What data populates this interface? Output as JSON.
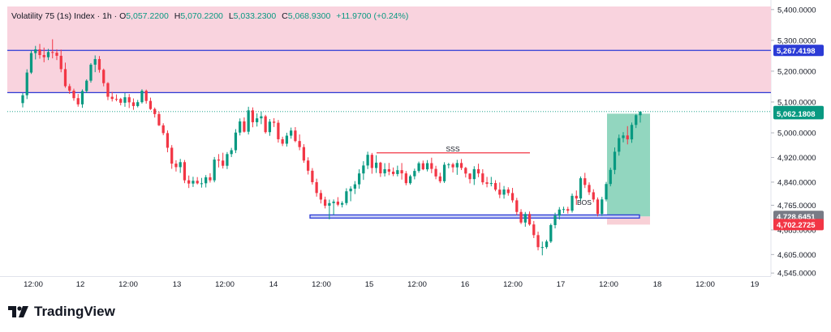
{
  "legend": {
    "symbol": "Volatility 75 (1s) Index · 1h ·",
    "o_label": "O",
    "o": "5,057.2200",
    "h_label": "H",
    "h": "5,070.2200",
    "l_label": "L",
    "l": "5,033.2300",
    "c_label": "C",
    "c": "5,068.9300",
    "change": "+11.9700 (+0.24%)"
  },
  "brand": {
    "name": "TradingView"
  },
  "colors": {
    "up": "#089981",
    "down": "#f23645",
    "zone": "#f9d3de",
    "level_line": "#2b3bd6",
    "target": "#7fcfb4",
    "stop": "#f7cbd1"
  },
  "chart_data": {
    "type": "candlestick",
    "timeframe": "1h",
    "x_ticks": [
      "12:00",
      "12",
      "12:00",
      "13",
      "12:00",
      "14",
      "12:00",
      "15",
      "12:00",
      "16",
      "12:00",
      "17",
      "12:00",
      "18",
      "12:00",
      "19"
    ],
    "y_ticks": [
      "5,400.0000",
      "5,300.0000",
      "5,200.0000",
      "5,100.0000",
      "5,000.0000",
      "4,920.0000",
      "4,840.0000",
      "4,765.0000",
      "4,685.0000",
      "4,605.0000",
      "4,545.0000"
    ],
    "y_range": [
      4535,
      5410
    ],
    "resistance_zone": [
      5130.5,
      5410
    ],
    "level_lines": [
      5267.4198,
      5130.5
    ],
    "support_zone": [
      4726,
      4731
    ],
    "price_labels": [
      {
        "text": "5,267.4198",
        "value": 5267.4198,
        "color": "#2b3bd6"
      },
      {
        "text": "5,068.9300",
        "value": 5068.93,
        "color": "#089981"
      },
      {
        "text": "5,062.1808",
        "value": 5062.1808,
        "color": "#089981"
      },
      {
        "text": "4,728.6451",
        "value": 4728.6451,
        "color": "#787b86"
      },
      {
        "text": "4,702.2725",
        "value": 4702.2725,
        "color": "#f23645"
      }
    ],
    "annotations": [
      {
        "text": "SSS",
        "value": 4935
      },
      {
        "text": "BOS",
        "value": 4745
      }
    ],
    "sss_line": 4935,
    "position": {
      "entry": 4728.6451,
      "target": 5062.1808,
      "stop": 4702.2725
    },
    "candles": [
      [
        5096.5,
        5129.0,
        5082.5,
        5122.0
      ],
      [
        5122.0,
        5206.2,
        5109.5,
        5195.6
      ],
      [
        5195.6,
        5267.5,
        5191.1,
        5258.8
      ],
      [
        5258.8,
        5282.1,
        5238.1,
        5270.8
      ],
      [
        5270.8,
        5288.5,
        5240.5,
        5252.4
      ],
      [
        5252.4,
        5276.7,
        5229.1,
        5245.4
      ],
      [
        5245.4,
        5272.4,
        5236.1,
        5262.1
      ],
      [
        5262.1,
        5303.6,
        5241.7,
        5259.9
      ],
      [
        5259.9,
        5271.0,
        5236.1,
        5250.0
      ],
      [
        5250.0,
        5270.1,
        5196.5,
        5206.7
      ],
      [
        5206.7,
        5227.8,
        5146.3,
        5151.4
      ],
      [
        5151.4,
        5158.9,
        5126.4,
        5136.8
      ],
      [
        5136.8,
        5143.2,
        5104.1,
        5112.5
      ],
      [
        5112.5,
        5126.1,
        5084.8,
        5092.4
      ],
      [
        5092.4,
        5141.0,
        5081.1,
        5135.5
      ],
      [
        5135.5,
        5173.7,
        5128.8,
        5169.2
      ],
      [
        5169.2,
        5226.2,
        5162.8,
        5221.2
      ],
      [
        5221.2,
        5251.2,
        5196.8,
        5239.3
      ],
      [
        5239.3,
        5249.2,
        5195.3,
        5204.4
      ],
      [
        5204.4,
        5208.4,
        5150.9,
        5161.2
      ],
      [
        5161.2,
        5164.4,
        5106.0,
        5117.0
      ],
      [
        5117.0,
        5132.8,
        5101.6,
        5110.0
      ],
      [
        5110.0,
        5124.6,
        5102.3,
        5109.9
      ],
      [
        5109.9,
        5113.6,
        5089.2,
        5097.6
      ],
      [
        5097.6,
        5128.9,
        5084.5,
        5115.4
      ],
      [
        5115.4,
        5125.8,
        5080.4,
        5098.9
      ],
      [
        5098.9,
        5111.6,
        5074.7,
        5087.0
      ],
      [
        5087.0,
        5106.7,
        5082.5,
        5099.4
      ],
      [
        5099.4,
        5141.4,
        5095.0,
        5136.5
      ],
      [
        5136.5,
        5140.4,
        5094.6,
        5103.5
      ],
      [
        5103.5,
        5114.2,
        5074.3,
        5077.2
      ],
      [
        5077.2,
        5082.1,
        5049.6,
        5060.8
      ],
      [
        5060.8,
        5069.4,
        5022.1,
        5024.3
      ],
      [
        5024.3,
        5031.1,
        4992.4,
        4999.1
      ],
      [
        4999.1,
        5007.8,
        4936.9,
        4951.6
      ],
      [
        4951.6,
        4960.2,
        4883.2,
        4900.1
      ],
      [
        4900.1,
        4911.0,
        4874.4,
        4888.7
      ],
      [
        4888.7,
        4915.3,
        4869.9,
        4904.8
      ],
      [
        4904.8,
        4911.9,
        4836.7,
        4846.0
      ],
      [
        4846.0,
        4861.5,
        4820.9,
        4835.4
      ],
      [
        4835.4,
        4857.4,
        4824.3,
        4844.4
      ],
      [
        4844.4,
        4856.4,
        4832.6,
        4836.1
      ],
      [
        4836.1,
        4853.7,
        4822.2,
        4836.3
      ],
      [
        4836.3,
        4862.9,
        4822.7,
        4855.7
      ],
      [
        4855.7,
        4868.8,
        4838.6,
        4845.9
      ],
      [
        4845.9,
        4921.6,
        4839.4,
        4913.2
      ],
      [
        4913.2,
        4931.0,
        4887.7,
        4910.0
      ],
      [
        4910.0,
        4935.4,
        4884.2,
        4893.1
      ],
      [
        4893.1,
        4937.6,
        4882.4,
        4931.0
      ],
      [
        4931.0,
        4951.2,
        4921.4,
        4943.6
      ],
      [
        4943.6,
        5012.0,
        4934.2,
        5000.8
      ],
      [
        5000.8,
        5046.7,
        4991.5,
        5037.1
      ],
      [
        5037.1,
        5050.0,
        5000.8,
        5003.6
      ],
      [
        5003.6,
        5084.6,
        4994.7,
        5072.9
      ],
      [
        5072.9,
        5082.5,
        5018.0,
        5034.4
      ],
      [
        5034.4,
        5063.1,
        5020.4,
        5047.0
      ],
      [
        5047.0,
        5069.2,
        5028.2,
        5053.6
      ],
      [
        5053.6,
        5058.4,
        4997.4,
        5002.2
      ],
      [
        5002.2,
        5044.8,
        4990.3,
        5036.2
      ],
      [
        5036.2,
        5047.6,
        5018.9,
        5032.7
      ],
      [
        5032.7,
        5041.6,
        4968.3,
        4979.2
      ],
      [
        4979.2,
        4987.4,
        4957.0,
        4964.7
      ],
      [
        4964.7,
        5000.3,
        4955.5,
        4990.8
      ],
      [
        4990.8,
        5017.0,
        4981.1,
        5007.4
      ],
      [
        5007.4,
        5018.6,
        4969.4,
        4973.4
      ],
      [
        4973.4,
        4994.7,
        4943.5,
        4953.7
      ],
      [
        4953.7,
        4963.2,
        4902.7,
        4910.1
      ],
      [
        4910.1,
        4920.5,
        4864.8,
        4877.0
      ],
      [
        4877.0,
        4885.6,
        4832.1,
        4839.9
      ],
      [
        4839.9,
        4851.2,
        4792.9,
        4804.7
      ],
      [
        4804.7,
        4814.5,
        4770.8,
        4783.5
      ],
      [
        4783.5,
        4792.9,
        4754.7,
        4763.5
      ],
      [
        4763.5,
        4783.4,
        4719.3,
        4771.9
      ],
      [
        4771.9,
        4783.8,
        4733.9,
        4776.8
      ],
      [
        4776.8,
        4791.3,
        4761.8,
        4766.9
      ],
      [
        4766.9,
        4778.2,
        4757.9,
        4772.1
      ],
      [
        4772.1,
        4820.1,
        4765.2,
        4810.3
      ],
      [
        4810.3,
        4826.6,
        4778.0,
        4818.9
      ],
      [
        4818.9,
        4843.5,
        4801.3,
        4832.9
      ],
      [
        4832.9,
        4881.7,
        4818.4,
        4868.2
      ],
      [
        4868.2,
        4907.9,
        4847.3,
        4894.0
      ],
      [
        4894.0,
        4938.8,
        4882.4,
        4928.7
      ],
      [
        4928.7,
        4934.8,
        4867.3,
        4885.9
      ],
      [
        4885.9,
        4927.5,
        4869.8,
        4903.2
      ],
      [
        4903.2,
        4905.9,
        4856.9,
        4868.5
      ],
      [
        4868.5,
        4901.6,
        4858.3,
        4882.0
      ],
      [
        4882.0,
        4902.4,
        4862.5,
        4874.0
      ],
      [
        4874.0,
        4887.6,
        4859.4,
        4866.3
      ],
      [
        4866.3,
        4893.5,
        4858.7,
        4878.8
      ],
      [
        4878.8,
        4902.0,
        4848.3,
        4868.4
      ],
      [
        4868.4,
        4876.1,
        4829.8,
        4836.7
      ],
      [
        4836.7,
        4864.1,
        4831.6,
        4859.1
      ],
      [
        4859.1,
        4883.9,
        4849.1,
        4876.3
      ],
      [
        4876.3,
        4906.6,
        4870.3,
        4901.2
      ],
      [
        4901.2,
        4910.0,
        4878.7,
        4881.6
      ],
      [
        4881.6,
        4911.4,
        4874.7,
        4901.6
      ],
      [
        4901.6,
        4919.3,
        4869.1,
        4882.9
      ],
      [
        4882.9,
        4893.0,
        4849.4,
        4858.5
      ],
      [
        4858.5,
        4870.6,
        4836.8,
        4842.8
      ],
      [
        4842.8,
        4904.6,
        4837.2,
        4896.4
      ],
      [
        4896.4,
        4902.5,
        4884.9,
        4897.9
      ],
      [
        4897.9,
        4903.0,
        4871.4,
        4888.0
      ],
      [
        4888.0,
        4912.4,
        4863.7,
        4902.0
      ],
      [
        4902.0,
        4915.1,
        4879.2,
        4886.1
      ],
      [
        4886.1,
        4889.5,
        4855.0,
        4867.8
      ],
      [
        4867.8,
        4869.2,
        4835.9,
        4849.8
      ],
      [
        4849.8,
        4891.7,
        4830.8,
        4882.1
      ],
      [
        4882.1,
        4899.8,
        4856.0,
        4868.3
      ],
      [
        4868.3,
        4882.0,
        4831.3,
        4839.4
      ],
      [
        4839.4,
        4857.0,
        4823.1,
        4834.3
      ],
      [
        4834.3,
        4857.0,
        4826.4,
        4837.0
      ],
      [
        4837.0,
        4846.4,
        4810.3,
        4815.6
      ],
      [
        4815.6,
        4838.9,
        4788.0,
        4799.3
      ],
      [
        4799.3,
        4827.5,
        4786.4,
        4816.1
      ],
      [
        4816.1,
        4823.3,
        4796.0,
        4804.5
      ],
      [
        4804.5,
        4821.3,
        4773.4,
        4781.0
      ],
      [
        4781.0,
        4789.0,
        4732.9,
        4743.2
      ],
      [
        4743.2,
        4752.3,
        4703.8,
        4708.9
      ],
      [
        4708.9,
        4743.3,
        4695.2,
        4736.6
      ],
      [
        4736.6,
        4744.8,
        4698.6,
        4702.7
      ],
      [
        4702.7,
        4713.9,
        4658.5,
        4668.1
      ],
      [
        4668.1,
        4679.3,
        4618.6,
        4629.0
      ],
      [
        4629.0,
        4647.1,
        4602.5,
        4629.2
      ],
      [
        4629.2,
        4652.9,
        4623.6,
        4647.3
      ],
      [
        4647.3,
        4705.5,
        4642.6,
        4700.6
      ],
      [
        4700.6,
        4740.8,
        4689.9,
        4731.3
      ],
      [
        4731.3,
        4759.1,
        4718.6,
        4751.0
      ],
      [
        4751.0,
        4760.4,
        4739.7,
        4752.5
      ],
      [
        4752.5,
        4760.0,
        4738.0,
        4747.2
      ],
      [
        4747.2,
        4803.1,
        4741.1,
        4795.6
      ],
      [
        4795.6,
        4812.9,
        4766.2,
        4787.0
      ],
      [
        4787.0,
        4858.4,
        4779.6,
        4852.6
      ],
      [
        4852.6,
        4870.2,
        4820.9,
        4830.9
      ],
      [
        4830.9,
        4839.3,
        4798.4,
        4807.1
      ],
      [
        4807.1,
        4817.0,
        4775.0,
        4783.7
      ],
      [
        4783.7,
        4790.4,
        4729.1,
        4737.0
      ],
      [
        4737.0,
        4792.1,
        4730.6,
        4783.9
      ],
      [
        4783.9,
        4840.7,
        4777.5,
        4834.0
      ],
      [
        4834.0,
        4886.9,
        4826.4,
        4879.8
      ],
      [
        4879.8,
        4952.4,
        4865.7,
        4938.7
      ],
      [
        4938.7,
        4994.5,
        4926.0,
        4983.0
      ],
      [
        4983.0,
        5002.3,
        4969.1,
        4991.5
      ],
      [
        4991.5,
        5021.7,
        4962.5,
        4978.8
      ],
      [
        4978.8,
        5033.4,
        4967.5,
        5025.7
      ],
      [
        5025.7,
        5061.4,
        5015.5,
        5057.2
      ],
      [
        5057.2,
        5070.2,
        5033.2,
        5068.9
      ]
    ]
  }
}
